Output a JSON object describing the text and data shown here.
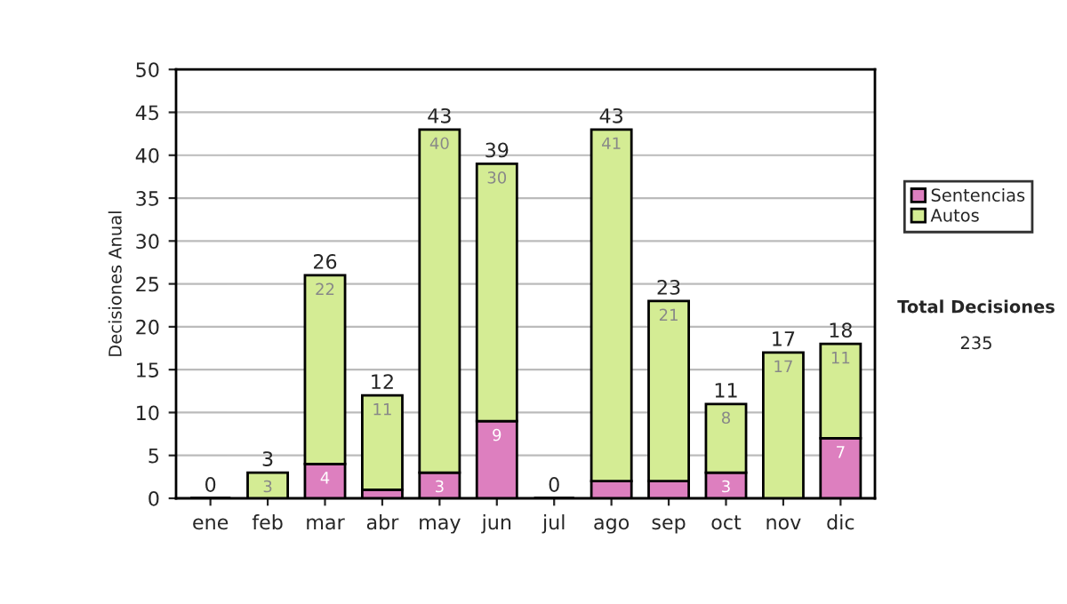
{
  "chart_data": {
    "type": "bar",
    "stacked": true,
    "ylabel": "Decisiones Anual",
    "categories": [
      "ene",
      "feb",
      "mar",
      "abr",
      "may",
      "jun",
      "jul",
      "ago",
      "sep",
      "oct",
      "nov",
      "dic"
    ],
    "series": [
      {
        "name": "Sentencias",
        "color": "#dd7fbf",
        "values": [
          0,
          0,
          4,
          1,
          3,
          9,
          0,
          2,
          2,
          3,
          0,
          7
        ],
        "value_labels": [
          null,
          null,
          "4",
          null,
          "3",
          "9",
          null,
          null,
          null,
          "3",
          null,
          "7"
        ]
      },
      {
        "name": "Autos",
        "color": "#d4ec94",
        "values": [
          0,
          3,
          22,
          11,
          40,
          30,
          0,
          41,
          21,
          8,
          17,
          11
        ],
        "value_labels": [
          null,
          "3",
          "22",
          "11",
          "40",
          "30",
          null,
          "41",
          "21",
          "8",
          "17",
          "11"
        ]
      }
    ],
    "totals": [
      "0",
      "3",
      "26",
      "12",
      "43",
      "39",
      "0",
      "43",
      "23",
      "11",
      "17",
      "18"
    ],
    "ylim": [
      0,
      50
    ],
    "yticks": [
      0,
      5,
      10,
      15,
      20,
      25,
      30,
      35,
      40,
      45,
      50
    ],
    "grid": "y",
    "legend": "right",
    "annotations": [
      "Total Decisiones",
      "235"
    ]
  }
}
